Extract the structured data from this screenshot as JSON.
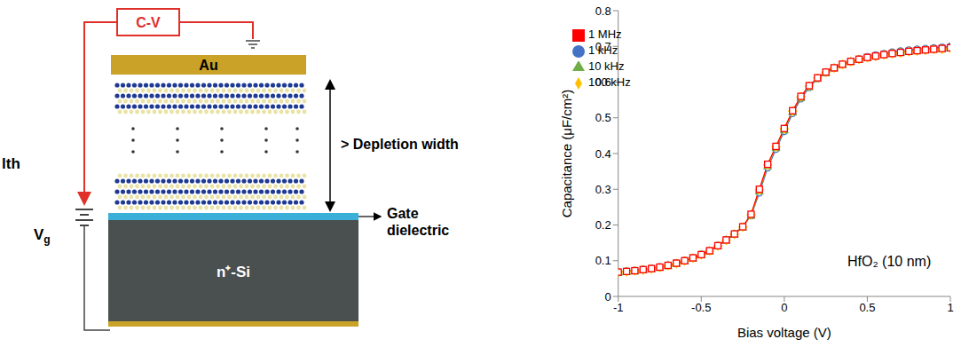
{
  "diagram": {
    "instrument": "C-V",
    "top_electrode": "Au",
    "layer_thickness": "> Depletion width",
    "dielectric": "Gate dielectric",
    "substrate": "n⁺-Si",
    "bias": {
      "text": "V",
      "subscript": "g"
    },
    "cropped_label": "lth"
  },
  "chart_data": {
    "type": "line",
    "xlabel": "Bias voltage (V)",
    "ylabel": "Capacitance (μF/cm²)",
    "annotation": "HfO₂ (10 nm)",
    "x": [
      -1,
      -0.95,
      -0.9,
      -0.85,
      -0.8,
      -0.75,
      -0.7,
      -0.65,
      -0.6,
      -0.55,
      -0.5,
      -0.45,
      -0.4,
      -0.35,
      -0.3,
      -0.25,
      -0.2,
      -0.15,
      -0.1,
      -0.05,
      0,
      0.05,
      0.1,
      0.15,
      0.2,
      0.25,
      0.3,
      0.35,
      0.4,
      0.45,
      0.5,
      0.55,
      0.6,
      0.65,
      0.7,
      0.75,
      0.8,
      0.85,
      0.9,
      0.95,
      1
    ],
    "series": [
      {
        "name": "1 kHz",
        "color": "#4472c4",
        "marker": "circle",
        "values": [
          0.069,
          0.071,
          0.073,
          0.076,
          0.079,
          0.083,
          0.088,
          0.094,
          0.101,
          0.109,
          0.118,
          0.129,
          0.143,
          0.159,
          0.176,
          0.196,
          0.226,
          0.29,
          0.36,
          0.412,
          0.462,
          0.512,
          0.553,
          0.585,
          0.609,
          0.626,
          0.639,
          0.65,
          0.658,
          0.665,
          0.671,
          0.676,
          0.68,
          0.684,
          0.687,
          0.69,
          0.692,
          0.694,
          0.696,
          0.698,
          0.7
        ]
      },
      {
        "name": "10 kHz",
        "color": "#70ad47",
        "marker": "triangle",
        "values": [
          0.068,
          0.07,
          0.072,
          0.075,
          0.078,
          0.082,
          0.087,
          0.093,
          0.1,
          0.108,
          0.117,
          0.128,
          0.142,
          0.158,
          0.175,
          0.195,
          0.228,
          0.296,
          0.366,
          0.417,
          0.467,
          0.517,
          0.557,
          0.588,
          0.611,
          0.627,
          0.64,
          0.65,
          0.658,
          0.664,
          0.669,
          0.674,
          0.678,
          0.681,
          0.684,
          0.687,
          0.689,
          0.691,
          0.693,
          0.695,
          0.697
        ]
      },
      {
        "name": "100 kHz",
        "color": "#ffc000",
        "marker": "diamond",
        "values": [
          0.067,
          0.069,
          0.071,
          0.074,
          0.077,
          0.081,
          0.086,
          0.092,
          0.099,
          0.107,
          0.116,
          0.127,
          0.141,
          0.157,
          0.174,
          0.194,
          0.229,
          0.298,
          0.368,
          0.419,
          0.469,
          0.519,
          0.559,
          0.589,
          0.611,
          0.627,
          0.639,
          0.649,
          0.657,
          0.663,
          0.668,
          0.672,
          0.676,
          0.679,
          0.682,
          0.685,
          0.687,
          0.689,
          0.691,
          0.692,
          0.694
        ]
      },
      {
        "name": "1 MHz",
        "color": "#ff0000",
        "marker": "square",
        "values": [
          0.068,
          0.07,
          0.072,
          0.075,
          0.078,
          0.082,
          0.087,
          0.093,
          0.1,
          0.108,
          0.117,
          0.128,
          0.142,
          0.158,
          0.175,
          0.195,
          0.23,
          0.3,
          0.37,
          0.42,
          0.47,
          0.52,
          0.56,
          0.59,
          0.612,
          0.628,
          0.64,
          0.65,
          0.658,
          0.664,
          0.669,
          0.673,
          0.677,
          0.68,
          0.683,
          0.686,
          0.688,
          0.69,
          0.692,
          0.694,
          0.696
        ]
      }
    ],
    "xlim": [
      -1,
      1
    ],
    "xticks": [
      -1,
      -0.5,
      0,
      0.5,
      1
    ],
    "ylim": [
      0,
      0.8
    ],
    "yticks": [
      0,
      0.1,
      0.2,
      0.3,
      0.4,
      0.5,
      0.6,
      0.7,
      0.8
    ],
    "grid": false,
    "legend": "upper left"
  }
}
